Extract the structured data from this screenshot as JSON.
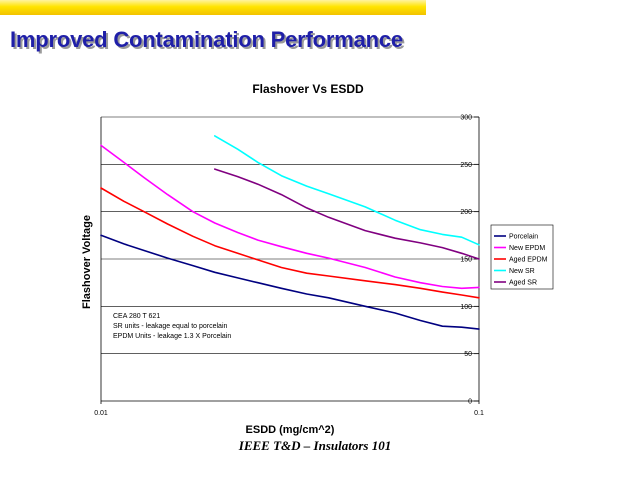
{
  "slide": {
    "title": "Improved Contamination Performance",
    "footer": "IEEE T&D – Insulators 101"
  },
  "chart_data": {
    "type": "line",
    "title": "Flashover Vs ESDD",
    "xlabel": "ESDD (mg/cm^2)",
    "ylabel": "Flashover Voltage",
    "xscale": "log",
    "xlim": [
      0.01,
      0.1
    ],
    "ylim": [
      0,
      300
    ],
    "x_ticks": [
      0.01,
      0.1
    ],
    "x_tick_labels": [
      "0.01",
      "0.1"
    ],
    "y_ticks": [
      0,
      50,
      100,
      150,
      200,
      250,
      300
    ],
    "y_tick_labels": [
      "0",
      "50",
      "100",
      "150",
      "200",
      "250",
      "300"
    ],
    "grid": "horizontal",
    "legend_position": "right",
    "series": [
      {
        "name": "Porcelain",
        "color": "#000080",
        "x": [
          0.01,
          0.0115,
          0.013,
          0.015,
          0.0175,
          0.02,
          0.023,
          0.026,
          0.03,
          0.035,
          0.04,
          0.05,
          0.06,
          0.07,
          0.08,
          0.09,
          0.1
        ],
        "y": [
          175,
          166,
          159,
          151,
          143,
          136,
          130,
          125,
          119,
          113,
          109,
          100,
          93,
          85,
          79,
          78,
          76
        ]
      },
      {
        "name": "New EPDM",
        "color": "#ff00ff",
        "x": [
          0.01,
          0.0115,
          0.013,
          0.015,
          0.0175,
          0.02,
          0.023,
          0.026,
          0.03,
          0.035,
          0.04,
          0.05,
          0.06,
          0.07,
          0.08,
          0.09,
          0.1
        ],
        "y": [
          270,
          252,
          236,
          218,
          200,
          188,
          178,
          170,
          163,
          156,
          151,
          141,
          131,
          125,
          121,
          119,
          120
        ]
      },
      {
        "name": "Aged EPDM",
        "color": "#ff0000",
        "x": [
          0.01,
          0.0115,
          0.013,
          0.015,
          0.0175,
          0.02,
          0.023,
          0.026,
          0.03,
          0.035,
          0.04,
          0.05,
          0.06,
          0.07,
          0.08,
          0.09,
          0.1
        ],
        "y": [
          225,
          211,
          200,
          187,
          174,
          164,
          156,
          149,
          141,
          135,
          132,
          127,
          123,
          119,
          115,
          112,
          109
        ]
      },
      {
        "name": "New SR",
        "color": "#00ffff",
        "x": [
          0.02,
          0.023,
          0.026,
          0.03,
          0.035,
          0.04,
          0.05,
          0.06,
          0.07,
          0.08,
          0.09,
          0.1
        ],
        "y": [
          280,
          266,
          252,
          238,
          227,
          219,
          205,
          191,
          181,
          176,
          173,
          165
        ]
      },
      {
        "name": "Aged SR",
        "color": "#800080",
        "x": [
          0.02,
          0.023,
          0.026,
          0.03,
          0.035,
          0.04,
          0.05,
          0.06,
          0.07,
          0.08,
          0.09,
          0.1
        ],
        "y": [
          245,
          237,
          229,
          218,
          204,
          194,
          180,
          172,
          167,
          162,
          156,
          150
        ]
      }
    ],
    "annotation": [
      "CEA 280 T 621",
      "SR units - leakage equal to porcelain",
      "EPDM Units - leakage 1.3 X Porcelain"
    ]
  }
}
